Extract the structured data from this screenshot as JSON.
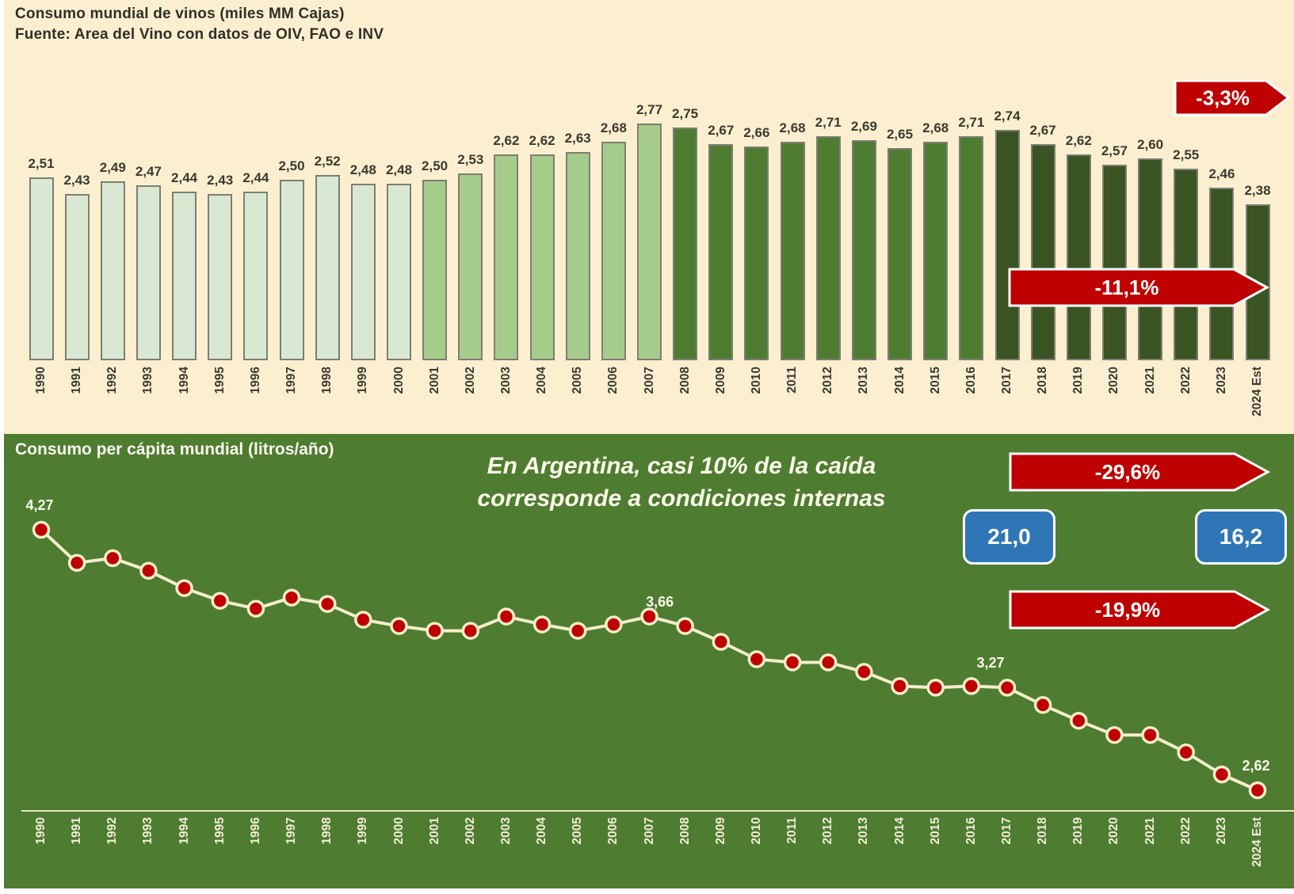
{
  "chart_data": [
    {
      "type": "bar",
      "title": "Consumo mundial de vinos (miles MM Cajas)",
      "subtitle": "Fuente: Area del Vino con datos de OIV, FAO e INV",
      "categories": [
        "1990",
        "1991",
        "1992",
        "1993",
        "1994",
        "1995",
        "1996",
        "1997",
        "1998",
        "1999",
        "2000",
        "2001",
        "2002",
        "2003",
        "2004",
        "2005",
        "2006",
        "2007",
        "2008",
        "2009",
        "2010",
        "2011",
        "2012",
        "2013",
        "2014",
        "2015",
        "2016",
        "2017",
        "2018",
        "2019",
        "2020",
        "2021",
        "2022",
        "2023",
        "2024 Est"
      ],
      "values": [
        2.51,
        2.43,
        2.49,
        2.47,
        2.44,
        2.43,
        2.44,
        2.5,
        2.52,
        2.48,
        2.48,
        2.5,
        2.53,
        2.62,
        2.62,
        2.63,
        2.68,
        2.77,
        2.75,
        2.67,
        2.66,
        2.68,
        2.71,
        2.69,
        2.65,
        2.68,
        2.71,
        2.74,
        2.67,
        2.62,
        2.57,
        2.6,
        2.55,
        2.46,
        2.38
      ],
      "value_labels": [
        "2,51",
        "2,43",
        "2,49",
        "2,47",
        "2,44",
        "2,43",
        "2,44",
        "2,50",
        "2,52",
        "2,48",
        "2,48",
        "2,50",
        "2,53",
        "2,62",
        "2,62",
        "2,63",
        "2,68",
        "2,77",
        "2,75",
        "2,67",
        "2,66",
        "2,68",
        "2,71",
        "2,69",
        "2,65",
        "2,68",
        "2,71",
        "2,74",
        "2,67",
        "2,62",
        "2,57",
        "2,60",
        "2,55",
        "2,46",
        "2,38"
      ],
      "segments": [
        {
          "from": 0,
          "to": 10,
          "color": "#d9e8d3",
          "label": "1990-2000"
        },
        {
          "from": 11,
          "to": 17,
          "color": "#a6cc8b",
          "label": "2001-2007"
        },
        {
          "from": 18,
          "to": 26,
          "color": "#4e7d32",
          "label": "2008-2016"
        },
        {
          "from": 27,
          "to": 34,
          "color": "#3a5423",
          "label": "2017-2024"
        }
      ],
      "annotations": [
        {
          "text": "-3,3%"
        },
        {
          "text": "-11,1%"
        }
      ],
      "grid": false,
      "ylim": [
        1.63,
        3.0
      ]
    },
    {
      "type": "line",
      "title": "Consumo per cápita mundial (litros/año)",
      "categories": [
        "1990",
        "1991",
        "1992",
        "1993",
        "1994",
        "1995",
        "1996",
        "1997",
        "1998",
        "1999",
        "2000",
        "2001",
        "2002",
        "2003",
        "2004",
        "2005",
        "2006",
        "2007",
        "2008",
        "2009",
        "2010",
        "2011",
        "2012",
        "2013",
        "2014",
        "2015",
        "2016",
        "2017",
        "2018",
        "2019",
        "2020",
        "2021",
        "2022",
        "2023",
        "2024 Est"
      ],
      "values": [
        4.27,
        4.06,
        4.09,
        4.01,
        3.9,
        3.82,
        3.77,
        3.84,
        3.8,
        3.7,
        3.66,
        3.63,
        3.63,
        3.72,
        3.67,
        3.63,
        3.67,
        3.72,
        3.66,
        3.56,
        3.45,
        3.43,
        3.43,
        3.37,
        3.28,
        3.27,
        3.28,
        3.27,
        3.16,
        3.06,
        2.97,
        2.97,
        2.86,
        2.72,
        2.62
      ],
      "point_labels": [
        {
          "index": 0,
          "text": "4,27"
        },
        {
          "index": 18,
          "text": "3,66"
        },
        {
          "index": 27,
          "text": "3,27"
        },
        {
          "index": 34,
          "text": "2,62"
        }
      ],
      "note_line1": "En Argentina, casi 10% de la caída",
      "note_line2": "corresponde a condiciones internas",
      "annotations": [
        {
          "text": "-29,6%"
        },
        {
          "text": "-19,9%"
        },
        {
          "text": "21,0"
        },
        {
          "text": "16,2"
        }
      ],
      "line_color": "#f3eec9",
      "point_color": "#bf0000",
      "grid": false,
      "ylim": [
        2.49,
        4.6
      ]
    }
  ],
  "colors": {
    "cream_background": "#fcefd0",
    "green_background": "#4e7c31",
    "arrow_red": "#be0000",
    "box_blue": "#2e76b6"
  }
}
